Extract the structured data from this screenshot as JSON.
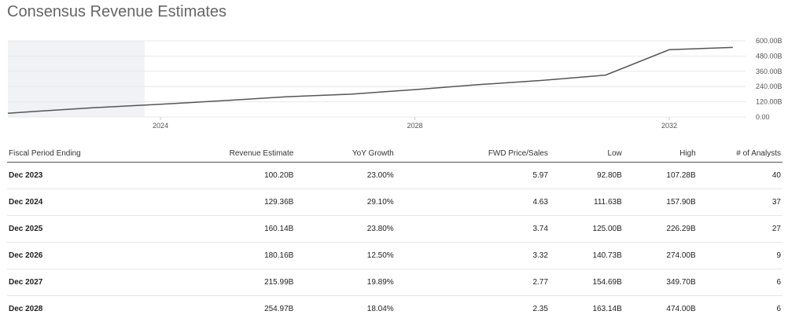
{
  "page": {
    "title": "Consensus Revenue Estimates"
  },
  "chart_data": {
    "type": "line",
    "title": "",
    "x_ticks": [
      "2024",
      "2028",
      "2032"
    ],
    "y_ticks": [
      "0.00",
      "120.00B",
      "240.00B",
      "360.00B",
      "480.00B",
      "600.00B"
    ],
    "ylim": [
      0,
      600
    ],
    "xlim": [
      2021.6,
      2033.2
    ],
    "shaded_range": [
      2021.6,
      2023.75
    ],
    "series": [
      {
        "x": [
          2021.6,
          2022.0,
          2023.0,
          2024.0,
          2025.0,
          2026.0,
          2027.0,
          2028.0,
          2029.0,
          2030.0,
          2031.0,
          2032.0,
          2033.0
        ],
        "values": [
          30,
          43,
          75,
          100.2,
          129.36,
          160.14,
          180.16,
          215.99,
          254.97,
          288,
          330,
          530,
          548
        ]
      }
    ],
    "colors": {
      "line": "#555555",
      "shade": "#f1f2f6",
      "grid": "#e8e8e8"
    }
  },
  "table": {
    "headers": [
      "Fiscal Period Ending",
      "Revenue Estimate",
      "YoY Growth",
      "FWD Price/Sales",
      "Low",
      "High",
      "# of Analysts"
    ],
    "rows": [
      [
        "Dec 2023",
        "100.20B",
        "23.00%",
        "5.97",
        "92.80B",
        "107.28B",
        "40"
      ],
      [
        "Dec 2024",
        "129.36B",
        "29.10%",
        "4.63",
        "111.63B",
        "157.90B",
        "37"
      ],
      [
        "Dec 2025",
        "160.14B",
        "23.80%",
        "3.74",
        "125.00B",
        "226.29B",
        "27"
      ],
      [
        "Dec 2026",
        "180.16B",
        "12.50%",
        "3.32",
        "140.73B",
        "274.00B",
        "9"
      ],
      [
        "Dec 2027",
        "215.99B",
        "19.89%",
        "2.77",
        "154.69B",
        "349.70B",
        "6"
      ],
      [
        "Dec 2028",
        "254.97B",
        "18.04%",
        "2.35",
        "163.14B",
        "474.00B",
        "6"
      ]
    ]
  }
}
